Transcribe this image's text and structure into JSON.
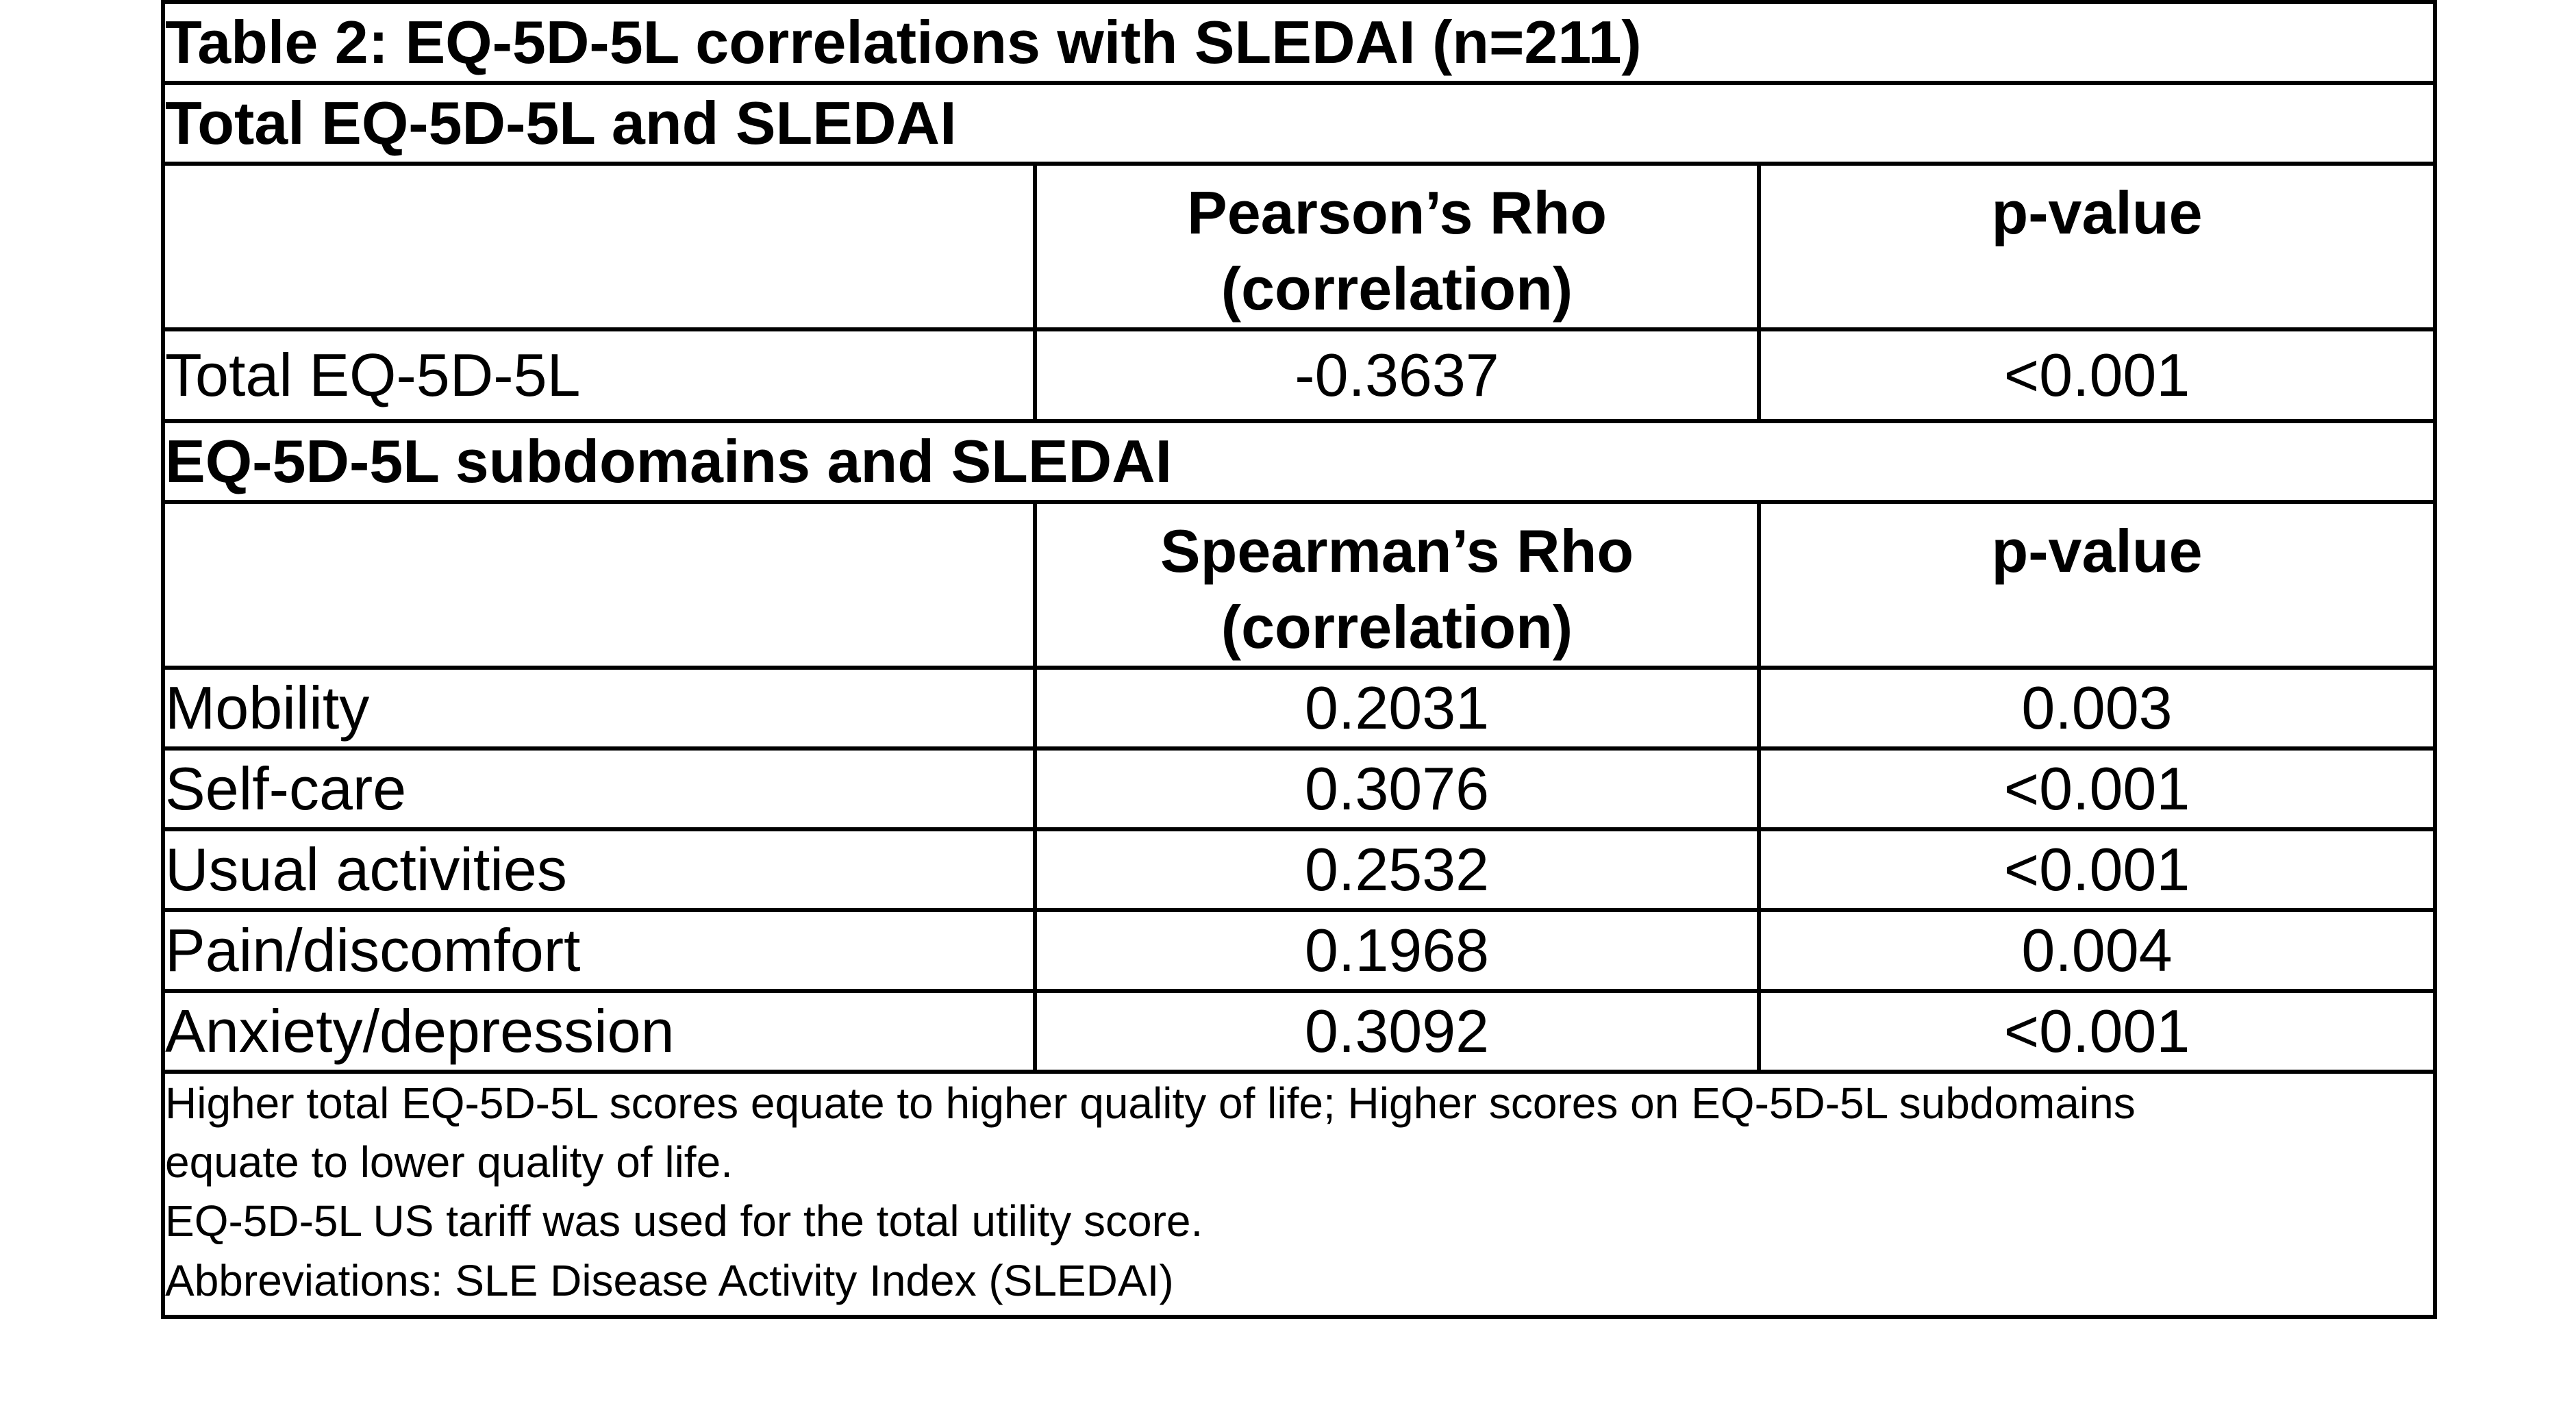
{
  "table": {
    "title": "Table 2: EQ-5D-5L correlations with SLEDAI (n=211)",
    "colors": {
      "title_band_bg": "#bdbdbd",
      "section_band_bg": "#d8d8d8",
      "border": "#000000",
      "text": "#000000",
      "cell_bg": "#ffffff"
    },
    "sections": [
      {
        "heading": "Total EQ-5D-5L and SLEDAI",
        "stat_header_line1": "Pearson’s Rho",
        "stat_header_line2": "(correlation)",
        "pvalue_header": "p-value",
        "rows": [
          {
            "label": "Total EQ-5D-5L",
            "rho": "-0.3637",
            "p": "<0.001"
          }
        ]
      },
      {
        "heading": "EQ-5D-5L subdomains and SLEDAI",
        "stat_header_line1": "Spearman’s Rho",
        "stat_header_line2": "(correlation)",
        "pvalue_header": "p-value",
        "rows": [
          {
            "label": "Mobility",
            "rho": "0.2031",
            "p": "0.003"
          },
          {
            "label": "Self-care",
            "rho": "0.3076",
            "p": "<0.001"
          },
          {
            "label": "Usual activities",
            "rho": "0.2532",
            "p": "<0.001"
          },
          {
            "label": "Pain/discomfort",
            "rho": "0.1968",
            "p": "0.004"
          },
          {
            "label": "Anxiety/depression",
            "rho": "0.3092",
            "p": "<0.001"
          }
        ]
      }
    ],
    "notes_lines": [
      "Higher total EQ-5D-5L scores equate to higher quality of life; Higher scores on EQ-5D-5L subdomains",
      "equate to lower quality of life.",
      "EQ-5D-5L US tariff was used for the total utility score.",
      "Abbreviations: SLE Disease Activity Index (SLEDAI)"
    ]
  }
}
